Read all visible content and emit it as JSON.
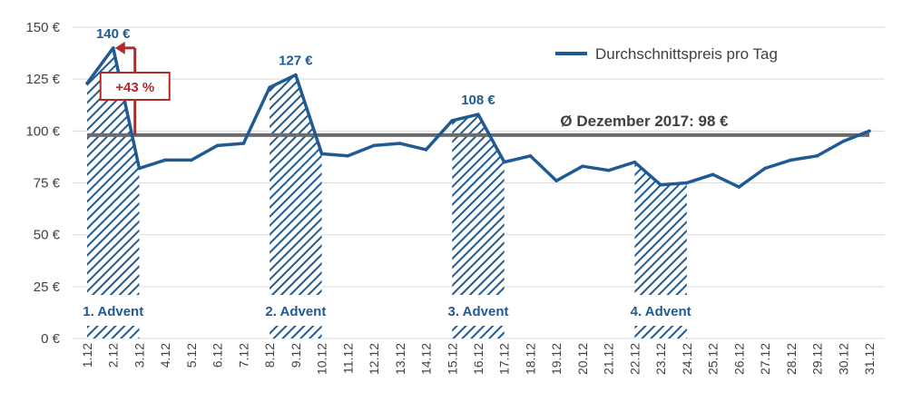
{
  "chart_data": {
    "type": "line",
    "title": "",
    "xlabel": "",
    "ylabel": "",
    "categories": [
      "1.12",
      "2.12",
      "3.12",
      "4.12",
      "5.12",
      "6.12",
      "7.12",
      "8.12",
      "9.12",
      "10.12",
      "11.12",
      "12.12",
      "13.12",
      "14.12",
      "15.12",
      "16.12",
      "17.12",
      "18.12",
      "19.12",
      "20.12",
      "21.12",
      "22.12",
      "23.12",
      "24.12",
      "25.12",
      "26.12",
      "27.12",
      "28.12",
      "29.12",
      "30.12",
      "31.12"
    ],
    "y_ticks": [
      "0 €",
      "25 €",
      "50 €",
      "75 €",
      "100 €",
      "125 €",
      "150 €"
    ],
    "ylim": [
      0,
      150
    ],
    "series": [
      {
        "name": "Durchschnittspreis pro Tag",
        "color": "#1f5a93",
        "values": [
          123,
          140,
          82,
          86,
          86,
          93,
          94,
          121,
          127,
          89,
          88,
          93,
          94,
          91,
          105,
          108,
          85,
          88,
          76,
          83,
          81,
          85,
          74,
          75,
          79,
          73,
          82,
          86,
          88,
          95,
          100
        ]
      }
    ],
    "average": {
      "value": 98,
      "label": "Ø Dezember 2017: 98 €",
      "color": "#6b6b6b"
    },
    "peak_labels": [
      {
        "index": 1,
        "text": "140 €"
      },
      {
        "index": 8,
        "text": "127 €"
      },
      {
        "index": 15,
        "text": "108 €"
      }
    ],
    "advent_periods": [
      {
        "start": 0,
        "end": 2,
        "label": "1. Advent"
      },
      {
        "start": 7,
        "end": 9,
        "label": "2. Advent"
      },
      {
        "start": 14,
        "end": 16,
        "label": "3. Advent"
      },
      {
        "start": 21,
        "end": 23,
        "label": "4. Advent"
      }
    ],
    "annotation": {
      "text": "+43 %",
      "color": "#b02a2a"
    },
    "legend_position": "top-right",
    "grid": "horizontal"
  }
}
